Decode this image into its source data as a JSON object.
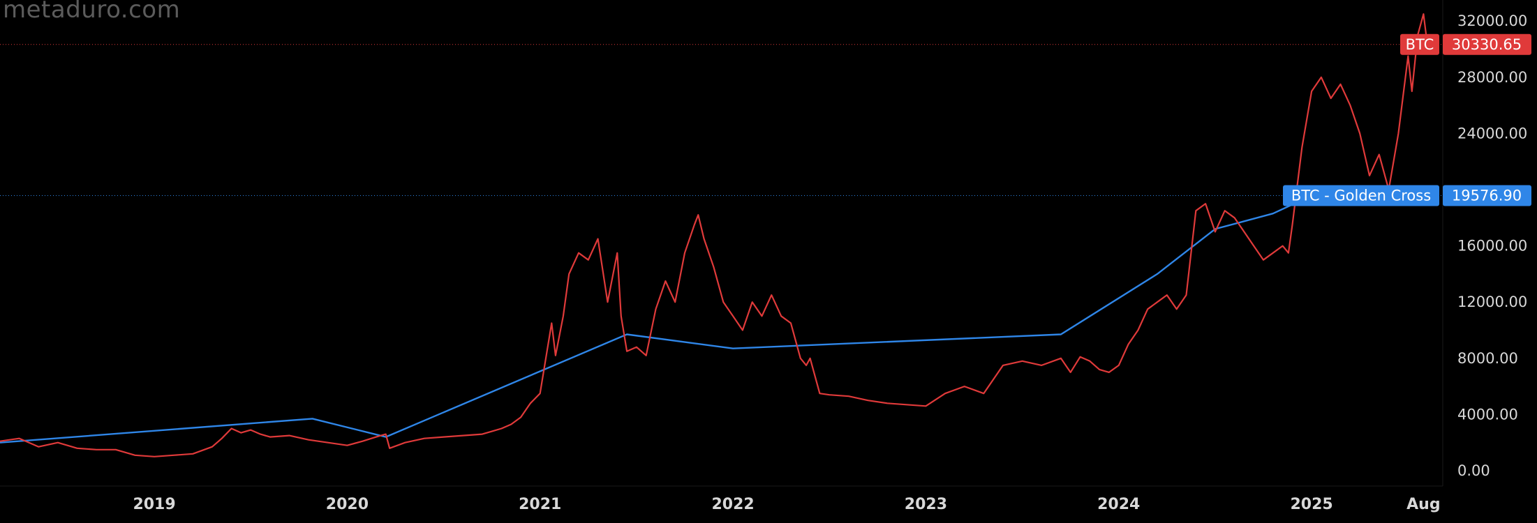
{
  "watermark": "metaduro.com",
  "colors": {
    "price_line": "#e03a3a",
    "golden_cross": "#2f86e8",
    "axis_text": "#d8d8d8",
    "background": "#000000"
  },
  "chart_data": {
    "type": "line",
    "ylim": [
      0,
      33000
    ],
    "y_ticks": [
      "32000.00",
      "28000.00",
      "24000.00",
      "16000.00",
      "12000.00",
      "8000.00",
      "4000.00",
      "0.00"
    ],
    "y_tick_values": [
      32000,
      28000,
      24000,
      16000,
      12000,
      8000,
      4000,
      0
    ],
    "x_range": [
      2018.2,
      2025.68
    ],
    "x_ticks": [
      {
        "label": "2019",
        "value": 2019.0
      },
      {
        "label": "2020",
        "value": 2020.0
      },
      {
        "label": "2021",
        "value": 2021.0
      },
      {
        "label": "2022",
        "value": 2022.0
      },
      {
        "label": "2023",
        "value": 2023.0
      },
      {
        "label": "2024",
        "value": 2024.0
      },
      {
        "label": "2025",
        "value": 2025.0
      },
      {
        "label": "Aug",
        "value": 2025.58
      }
    ],
    "series": [
      {
        "name": "BTC",
        "color": "#e03a3a",
        "last_value_label": "30330.65",
        "last_value": 30330.65,
        "x": [
          2018.2,
          2018.3,
          2018.4,
          2018.5,
          2018.6,
          2018.7,
          2018.8,
          2018.9,
          2019.0,
          2019.1,
          2019.2,
          2019.3,
          2019.35,
          2019.4,
          2019.45,
          2019.5,
          2019.55,
          2019.6,
          2019.7,
          2019.8,
          2019.9,
          2020.0,
          2020.08,
          2020.15,
          2020.2,
          2020.22,
          2020.3,
          2020.4,
          2020.5,
          2020.6,
          2020.7,
          2020.75,
          2020.8,
          2020.85,
          2020.9,
          2020.95,
          2021.0,
          2021.03,
          2021.06,
          2021.08,
          2021.12,
          2021.15,
          2021.2,
          2021.25,
          2021.3,
          2021.35,
          2021.4,
          2021.42,
          2021.45,
          2021.5,
          2021.55,
          2021.6,
          2021.65,
          2021.7,
          2021.75,
          2021.8,
          2021.82,
          2021.85,
          2021.9,
          2021.95,
          2022.0,
          2022.05,
          2022.1,
          2022.15,
          2022.2,
          2022.25,
          2022.3,
          2022.35,
          2022.38,
          2022.4,
          2022.45,
          2022.5,
          2022.6,
          2022.7,
          2022.8,
          2022.9,
          2023.0,
          2023.1,
          2023.2,
          2023.3,
          2023.4,
          2023.5,
          2023.6,
          2023.7,
          2023.75,
          2023.8,
          2023.85,
          2023.9,
          2023.95,
          2024.0,
          2024.05,
          2024.1,
          2024.15,
          2024.2,
          2024.25,
          2024.3,
          2024.35,
          2024.4,
          2024.45,
          2024.5,
          2024.55,
          2024.6,
          2024.65,
          2024.7,
          2024.75,
          2024.8,
          2024.85,
          2024.88,
          2024.9,
          2024.95,
          2025.0,
          2025.05,
          2025.1,
          2025.15,
          2025.2,
          2025.25,
          2025.3,
          2025.35,
          2025.4,
          2025.45,
          2025.5,
          2025.52,
          2025.55,
          2025.58,
          2025.6
        ],
        "y": [
          2100,
          2300,
          1700,
          2000,
          1600,
          1500,
          1500,
          1100,
          1000,
          1100,
          1200,
          1700,
          2300,
          3000,
          2700,
          2900,
          2600,
          2400,
          2500,
          2200,
          2000,
          1800,
          2100,
          2400,
          2600,
          1600,
          2000,
          2300,
          2400,
          2500,
          2600,
          2800,
          3000,
          3300,
          3800,
          4800,
          5500,
          8000,
          10500,
          8200,
          11000,
          14000,
          15500,
          15000,
          16500,
          12000,
          15500,
          11000,
          8500,
          8800,
          8200,
          11500,
          13500,
          12000,
          15500,
          17500,
          18200,
          16500,
          14500,
          12000,
          11000,
          10000,
          12000,
          11000,
          12500,
          11000,
          10500,
          8000,
          7500,
          8000,
          5500,
          5400,
          5300,
          5000,
          4800,
          4700,
          4600,
          5500,
          6000,
          5500,
          7500,
          7800,
          7500,
          8000,
          7000,
          8100,
          7800,
          7200,
          7000,
          7500,
          9000,
          10000,
          11500,
          12000,
          12500,
          11500,
          12500,
          18500,
          19000,
          17000,
          18500,
          18000,
          17000,
          16000,
          15000,
          15500,
          16000,
          15500,
          17500,
          23000,
          27000,
          28000,
          26500,
          27500,
          26000,
          24000,
          21000,
          22500,
          20000,
          24000,
          29500,
          27000,
          31000,
          32500,
          30330.65
        ]
      },
      {
        "name": "BTC - Golden Cross",
        "color": "#2f86e8",
        "last_value_label": "19576.90",
        "last_value": 19576.9,
        "x": [
          2018.2,
          2019.82,
          2020.2,
          2021.45,
          2022.0,
          2023.7,
          2024.2,
          2024.5,
          2024.8,
          2025.0
        ],
        "y": [
          2000,
          3700,
          2400,
          9700,
          8700,
          9700,
          14000,
          17200,
          18300,
          19576.9
        ]
      }
    ]
  }
}
